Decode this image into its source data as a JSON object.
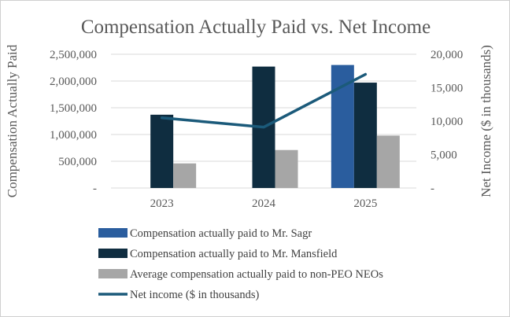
{
  "chart_data": {
    "type": "bar",
    "title": "Compensation Actually Paid vs. Net Income",
    "categories": [
      "2023",
      "2024",
      "2025"
    ],
    "ylabel": "Compensation Actually Paid",
    "y2label": "Net Income ($ in thousands)",
    "ylim": [
      0,
      2500000
    ],
    "y2lim": [
      0,
      20000
    ],
    "yticks": [
      "-",
      "500,000",
      "1,000,000",
      "1,500,000",
      "2,000,000",
      "2,500,000"
    ],
    "y2ticks": [
      "-",
      "5,000",
      "10,000",
      "15,000",
      "20,000"
    ],
    "ytick_values": [
      0,
      500000,
      1000000,
      1500000,
      2000000,
      2500000
    ],
    "y2tick_values": [
      0,
      5000,
      10000,
      15000,
      20000
    ],
    "grid": true,
    "legend_position": "bottom",
    "series": [
      {
        "name": "Compensation actually paid to Mr. Sagr",
        "type": "bar",
        "axis": "left",
        "color": "#2a5d9e",
        "values": [
          null,
          null,
          2300000
        ]
      },
      {
        "name": "Compensation actually paid to Mr. Mansfield",
        "type": "bar",
        "axis": "left",
        "color": "#0f2d40",
        "values": [
          1370000,
          2270000,
          1970000
        ]
      },
      {
        "name": "Average compensation actually paid to non-PEO NEOs",
        "type": "bar",
        "axis": "left",
        "color": "#a6a6a6",
        "values": [
          460000,
          710000,
          980000
        ]
      },
      {
        "name": "Net income ($ in thousands)",
        "type": "line",
        "axis": "right",
        "color": "#1b5a7a",
        "values": [
          10500,
          9100,
          17000
        ]
      }
    ]
  }
}
